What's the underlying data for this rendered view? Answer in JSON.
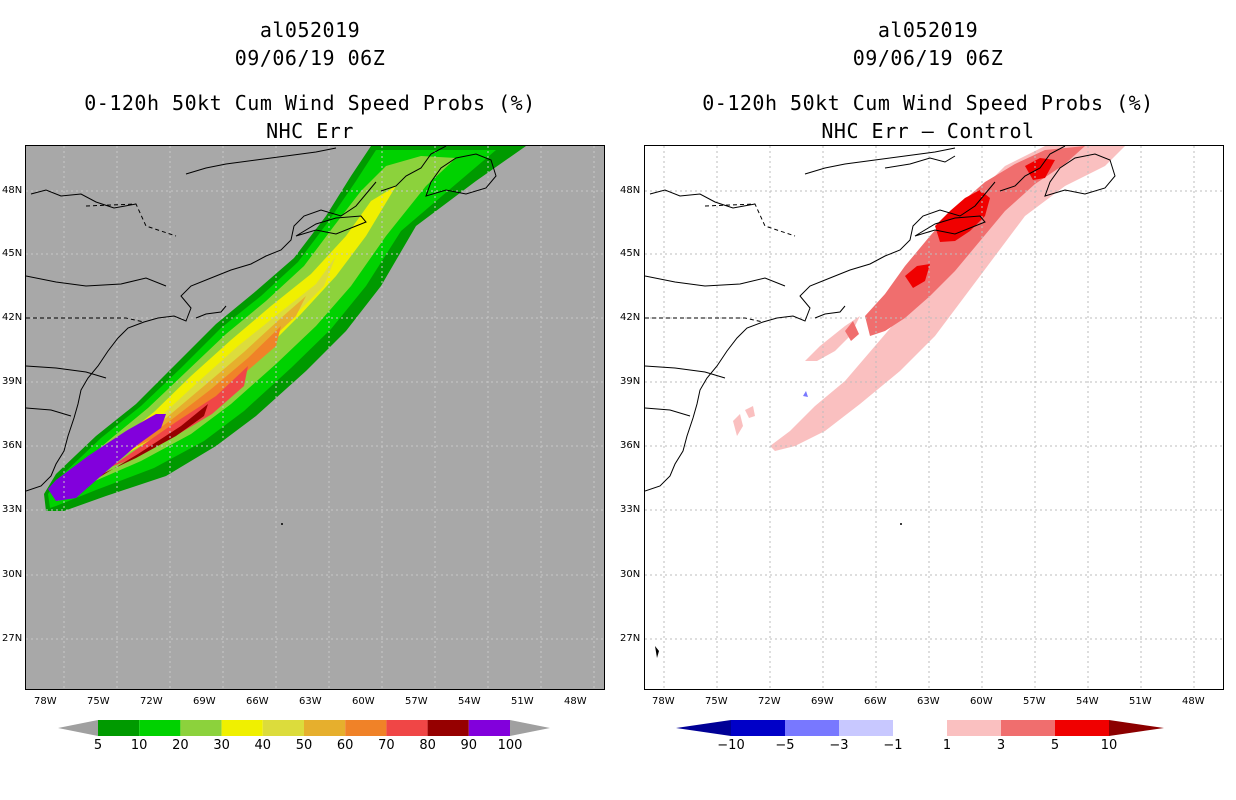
{
  "left": {
    "title_line1": "al052019",
    "title_line2": "09/06/19 06Z",
    "title_line3": "0-120h 50kt Cum Wind Speed Probs (%)",
    "title_line4": "NHC Err",
    "background": "#a8a8a8",
    "colorbar": {
      "labels": [
        "5",
        "10",
        "20",
        "30",
        "40",
        "50",
        "60",
        "70",
        "80",
        "90",
        "100"
      ],
      "colors": [
        "#009a00",
        "#00d200",
        "#8cd23c",
        "#f0f000",
        "#dcdc3c",
        "#e6af2d",
        "#f08228",
        "#f04646",
        "#960000",
        "#8200dc"
      ],
      "end_color": "#a0a0a0"
    }
  },
  "right": {
    "title_line1": "al052019",
    "title_line2": "09/06/19 06Z",
    "title_line3": "0-120h 50kt Cum Wind Speed Probs (%)",
    "title_line4": "NHC Err – Control",
    "background": "#ffffff",
    "colorbar": {
      "labels": [
        "−10",
        "−5",
        "−3",
        "−1",
        "1",
        "3",
        "5",
        "10"
      ],
      "colors": [
        "#0000c8",
        "#7878ff",
        "#c8c8ff",
        "#ffffff",
        "#fac0c0",
        "#f06e6e",
        "#f00000"
      ],
      "low_color": "#000096",
      "high_color": "#8c0000"
    }
  },
  "axes": {
    "lat_labels": [
      "48N",
      "45N",
      "42N",
      "39N",
      "36N",
      "33N",
      "30N",
      "27N"
    ],
    "lon_labels": [
      "78W",
      "75W",
      "72W",
      "69W",
      "66W",
      "63W",
      "60W",
      "57W",
      "54W",
      "51W",
      "48W"
    ]
  }
}
